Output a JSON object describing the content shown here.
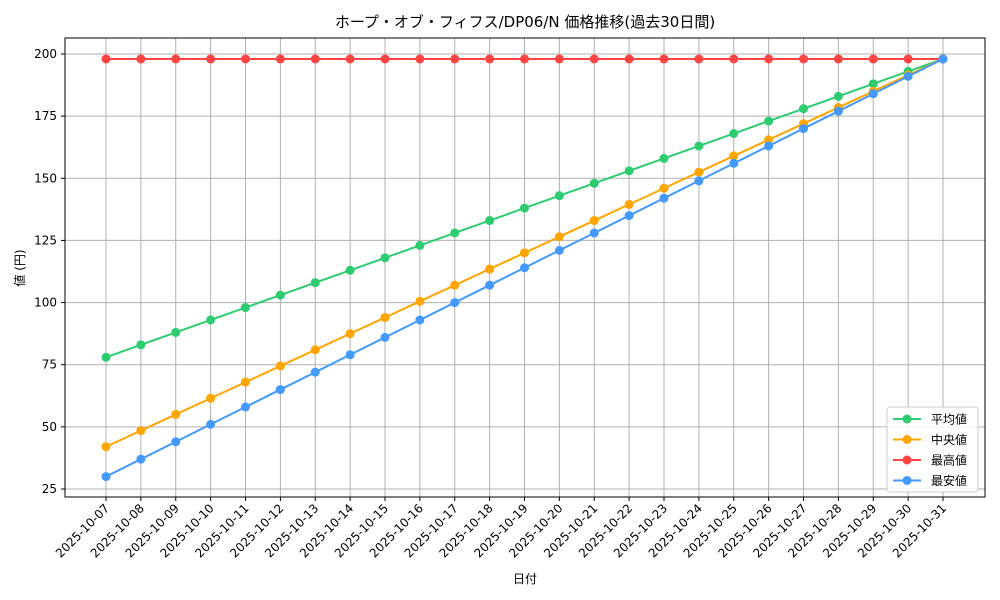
{
  "chart_data": {
    "type": "line",
    "title": "ホープ・オブ・フィフス/DP06/N 価格推移(過去30日間)",
    "xlabel": "日付",
    "ylabel": "値 (円)",
    "ylim": [
      22,
      206
    ],
    "yticks": [
      25,
      50,
      75,
      100,
      125,
      150,
      175,
      200
    ],
    "grid": true,
    "legend_position": "lower right",
    "categories": [
      "2025-10-07",
      "2025-10-08",
      "2025-10-09",
      "2025-10-10",
      "2025-10-11",
      "2025-10-12",
      "2025-10-13",
      "2025-10-14",
      "2025-10-15",
      "2025-10-16",
      "2025-10-17",
      "2025-10-18",
      "2025-10-19",
      "2025-10-20",
      "2025-10-21",
      "2025-10-22",
      "2025-10-23",
      "2025-10-24",
      "2025-10-25",
      "2025-10-26",
      "2025-10-27",
      "2025-10-28",
      "2025-10-29",
      "2025-10-30",
      "2025-10-31"
    ],
    "series": [
      {
        "name": "平均値",
        "color": "#2ecc71",
        "values": [
          78,
          83,
          88,
          93,
          98,
          103,
          108,
          113,
          118,
          123,
          128,
          133,
          138,
          143,
          148,
          153,
          158,
          163,
          168,
          173,
          178,
          183,
          188,
          193,
          198
        ]
      },
      {
        "name": "中央値",
        "color": "#ffa500",
        "values": [
          42,
          48.5,
          55,
          61.5,
          68,
          74.5,
          81,
          87.5,
          94,
          100.5,
          107,
          113.5,
          120,
          126.5,
          133,
          139.5,
          146,
          152.5,
          159,
          165.5,
          172,
          178.5,
          185,
          191.5,
          198
        ]
      },
      {
        "name": "最高値",
        "color": "#ff4444",
        "values": [
          198,
          198,
          198,
          198,
          198,
          198,
          198,
          198,
          198,
          198,
          198,
          198,
          198,
          198,
          198,
          198,
          198,
          198,
          198,
          198,
          198,
          198,
          198,
          198,
          198
        ]
      },
      {
        "name": "最安値",
        "color": "#4499ff",
        "values": [
          30,
          37,
          44,
          51,
          58,
          65,
          72,
          79,
          86,
          93,
          100,
          107,
          114,
          121,
          128,
          135,
          142,
          149,
          156,
          163,
          170,
          177,
          184,
          191,
          198
        ]
      }
    ]
  }
}
